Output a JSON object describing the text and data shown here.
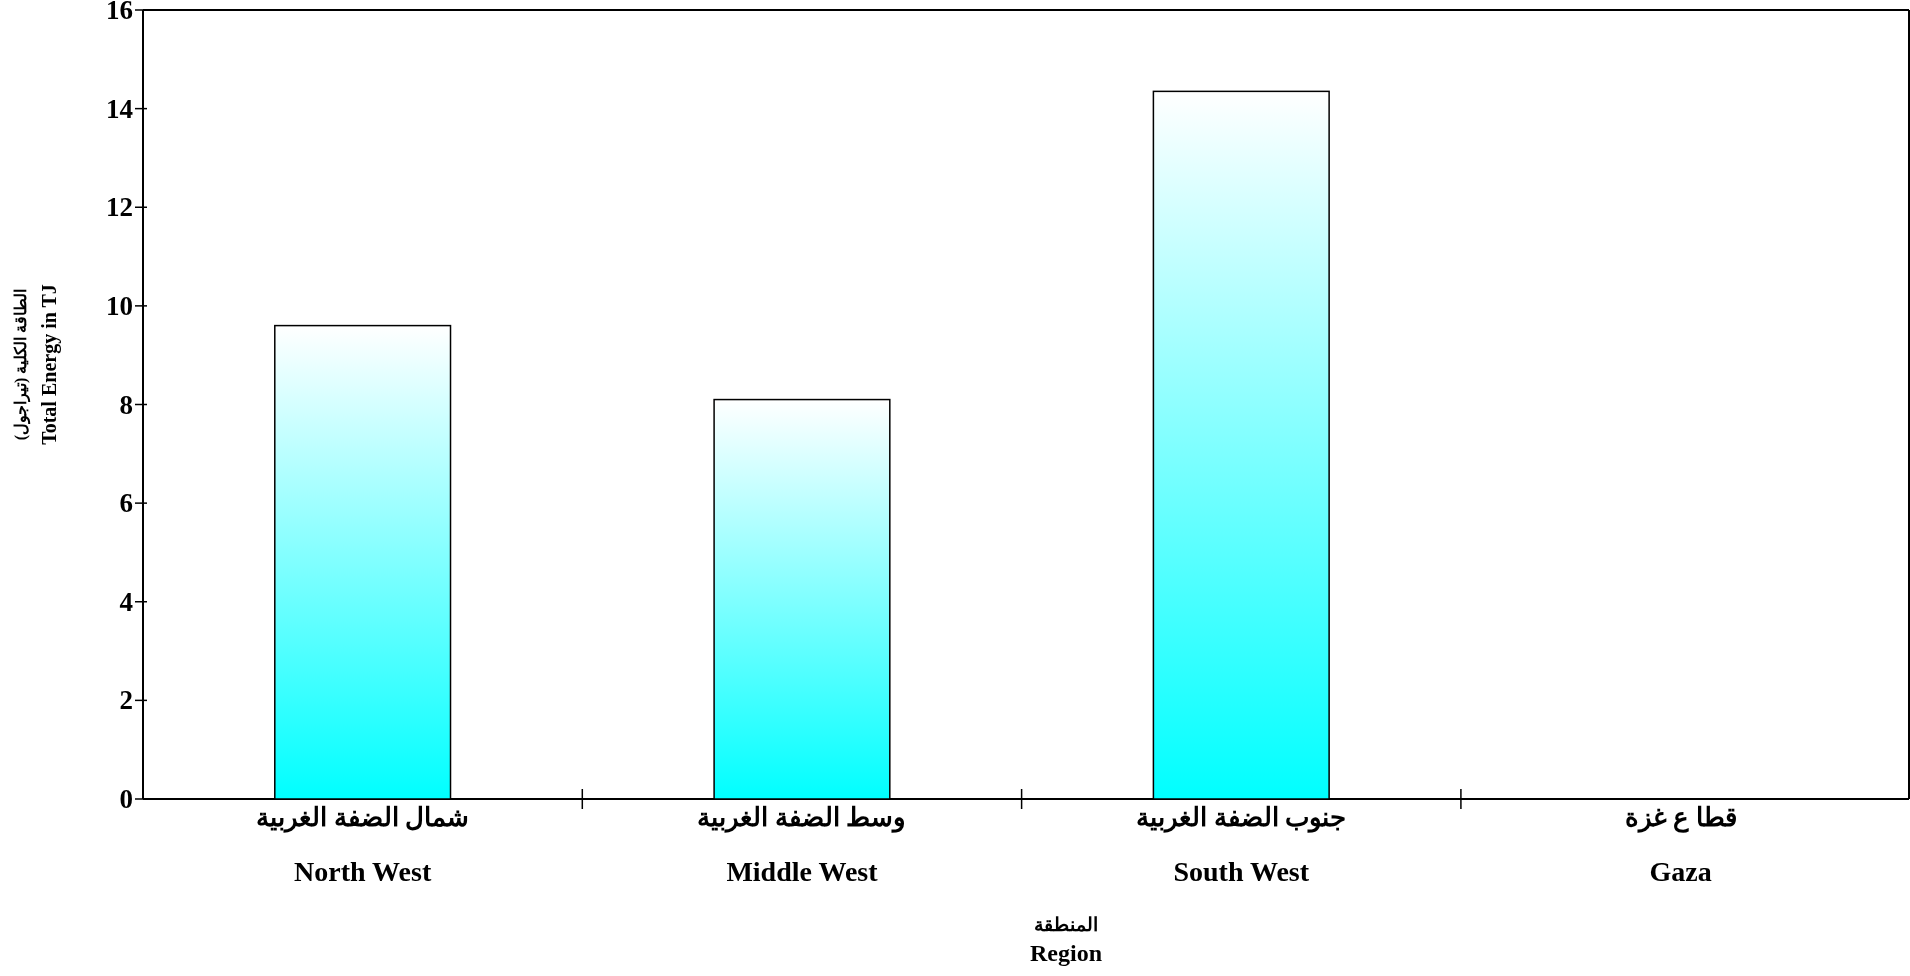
{
  "chart_data": {
    "type": "bar",
    "categories": [
      "شمال الضفة الغربية\nNorth West",
      "وسط الضفة الغربية\nMiddle West",
      "جنوب الضفة الغربية\nSouth West",
      "قطا ع غزة\nGaza"
    ],
    "values": [
      9.6,
      8.1,
      14.35,
      null
    ],
    "color": "#00ffff",
    "xlabel": "المنطقة\nRegion",
    "ylabel": "الطاقة الكلية (تيراجول)\nTotal Energy in TJ",
    "ylim": [
      0,
      16
    ],
    "yticks": [
      0,
      2,
      4,
      6,
      8,
      10,
      12,
      14,
      16
    ],
    "grid": false
  }
}
